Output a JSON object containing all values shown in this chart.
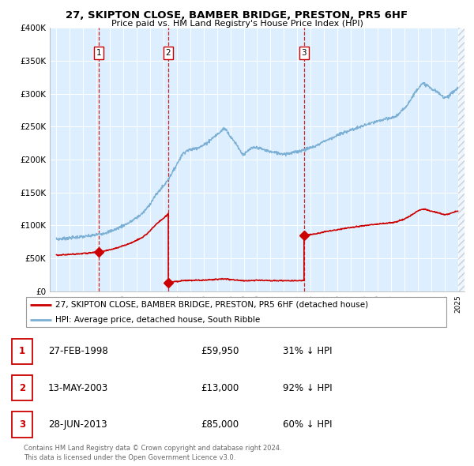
{
  "title": "27, SKIPTON CLOSE, BAMBER BRIDGE, PRESTON, PR5 6HF",
  "subtitle": "Price paid vs. HM Land Registry's House Price Index (HPI)",
  "ylim": [
    0,
    400000
  ],
  "yticks": [
    0,
    50000,
    100000,
    150000,
    200000,
    250000,
    300000,
    350000,
    400000
  ],
  "ytick_labels": [
    "£0",
    "£50K",
    "£100K",
    "£150K",
    "£200K",
    "£250K",
    "£300K",
    "£350K",
    "£400K"
  ],
  "hpi_color": "#7bafd4",
  "sale_color": "#cc0000",
  "dashed_color": "#cc0000",
  "bg_shade_color": "#ddeeff",
  "sale_points": [
    {
      "label": 1,
      "date_num": 1998.15,
      "price": 59950
    },
    {
      "label": 2,
      "date_num": 2003.36,
      "price": 13000
    },
    {
      "label": 3,
      "date_num": 2013.5,
      "price": 85000
    }
  ],
  "transaction_table": [
    {
      "num": "1",
      "date": "27-FEB-1998",
      "price": "£59,950",
      "hpi": "31% ↓ HPI"
    },
    {
      "num": "2",
      "date": "13-MAY-2003",
      "price": "£13,000",
      "hpi": "92% ↓ HPI"
    },
    {
      "num": "3",
      "date": "28-JUN-2013",
      "price": "£85,000",
      "hpi": "60% ↓ HPI"
    }
  ],
  "legend_sale": "27, SKIPTON CLOSE, BAMBER BRIDGE, PRESTON, PR5 6HF (detached house)",
  "legend_hpi": "HPI: Average price, detached house, South Ribble",
  "footer1": "Contains HM Land Registry data © Crown copyright and database right 2024.",
  "footer2": "This data is licensed under the Open Government Licence v3.0.",
  "xlim_start": 1994.5,
  "xlim_end": 2025.5
}
